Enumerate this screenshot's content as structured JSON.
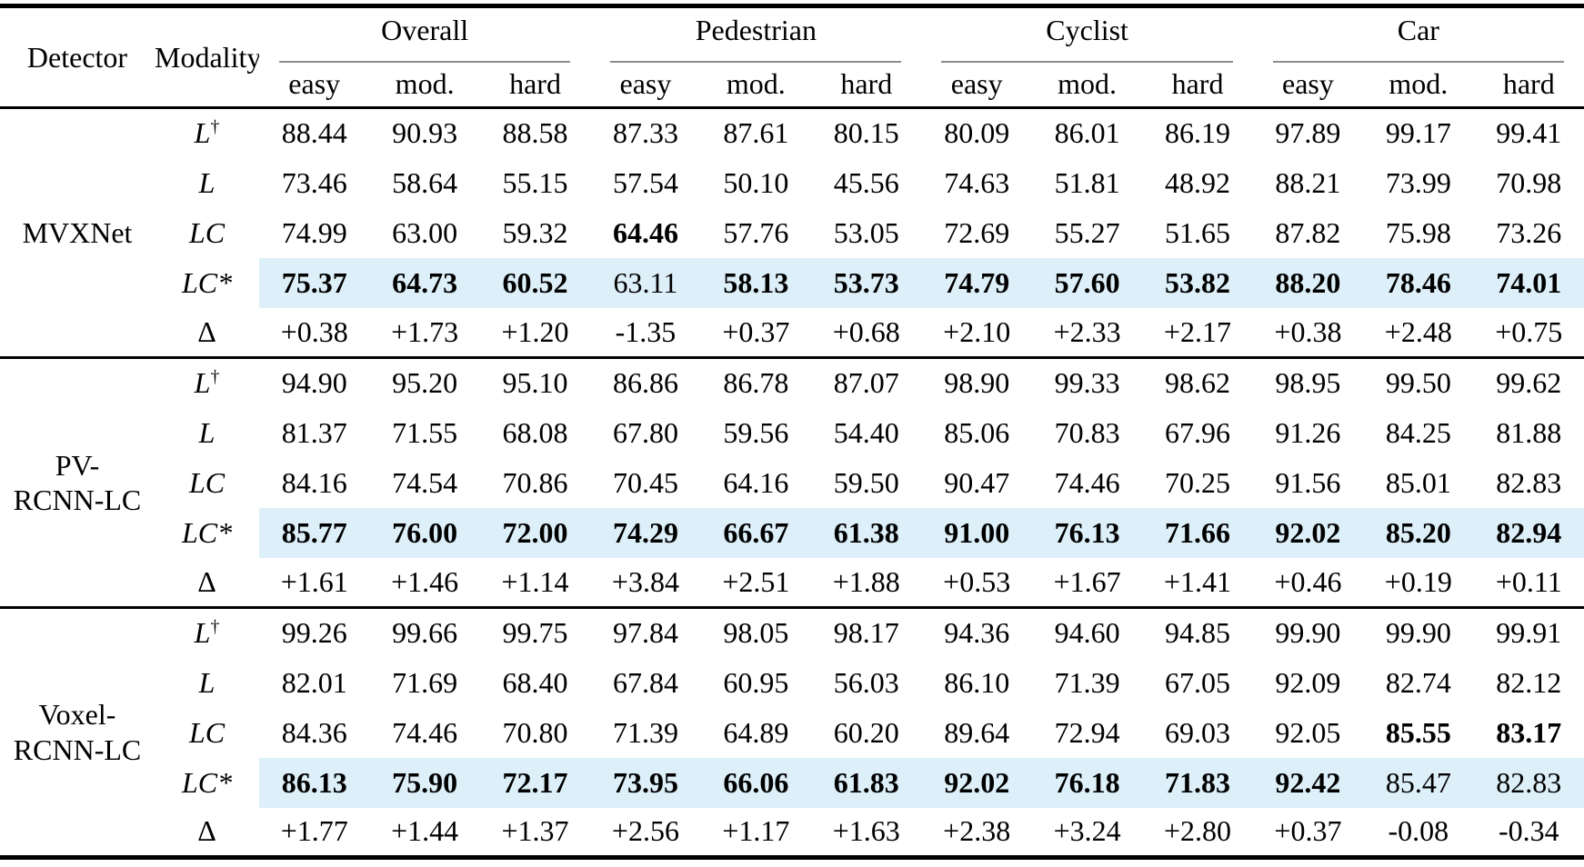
{
  "colors": {
    "highlight_bg": "#ddeff9",
    "rule_black": "#000000",
    "group_rule_gray": "#8c8c8c"
  },
  "table": {
    "headers": {
      "detector": "Detector",
      "modality": "Modality",
      "groups": [
        "Overall",
        "Pedestrian",
        "Cyclist",
        "Car"
      ],
      "sub": [
        "easy",
        "mod.",
        "hard"
      ]
    },
    "blocks": [
      {
        "detector": [
          "MVXNet"
        ],
        "rows": [
          {
            "modality": "L†",
            "highlight": false,
            "bold": [],
            "values": [
              "88.44",
              "90.93",
              "88.58",
              "87.33",
              "87.61",
              "80.15",
              "80.09",
              "86.01",
              "86.19",
              "97.89",
              "99.17",
              "99.41"
            ]
          },
          {
            "modality": "L",
            "highlight": false,
            "bold": [],
            "values": [
              "73.46",
              "58.64",
              "55.15",
              "57.54",
              "50.10",
              "45.56",
              "74.63",
              "51.81",
              "48.92",
              "88.21",
              "73.99",
              "70.98"
            ]
          },
          {
            "modality": "LC",
            "highlight": false,
            "bold": [
              3
            ],
            "values": [
              "74.99",
              "63.00",
              "59.32",
              "64.46",
              "57.76",
              "53.05",
              "72.69",
              "55.27",
              "51.65",
              "87.82",
              "75.98",
              "73.26"
            ]
          },
          {
            "modality": "LC*",
            "highlight": true,
            "bold": [
              0,
              1,
              2,
              4,
              5,
              6,
              7,
              8,
              9,
              10,
              11
            ],
            "values": [
              "75.37",
              "64.73",
              "60.52",
              "63.11",
              "58.13",
              "53.73",
              "74.79",
              "57.60",
              "53.82",
              "88.20",
              "78.46",
              "74.01"
            ]
          },
          {
            "modality": "Δ",
            "highlight": false,
            "bold": [],
            "values": [
              "+0.38",
              "+1.73",
              "+1.20",
              "-1.35",
              "+0.37",
              "+0.68",
              "+2.10",
              "+2.33",
              "+2.17",
              "+0.38",
              "+2.48",
              "+0.75"
            ]
          }
        ]
      },
      {
        "detector": [
          "PV-",
          "RCNN-LC"
        ],
        "rows": [
          {
            "modality": "L†",
            "highlight": false,
            "bold": [],
            "values": [
              "94.90",
              "95.20",
              "95.10",
              "86.86",
              "86.78",
              "87.07",
              "98.90",
              "99.33",
              "98.62",
              "98.95",
              "99.50",
              "99.62"
            ]
          },
          {
            "modality": "L",
            "highlight": false,
            "bold": [],
            "values": [
              "81.37",
              "71.55",
              "68.08",
              "67.80",
              "59.56",
              "54.40",
              "85.06",
              "70.83",
              "67.96",
              "91.26",
              "84.25",
              "81.88"
            ]
          },
          {
            "modality": "LC",
            "highlight": false,
            "bold": [],
            "values": [
              "84.16",
              "74.54",
              "70.86",
              "70.45",
              "64.16",
              "59.50",
              "90.47",
              "74.46",
              "70.25",
              "91.56",
              "85.01",
              "82.83"
            ]
          },
          {
            "modality": "LC*",
            "highlight": true,
            "bold": [
              0,
              1,
              2,
              3,
              4,
              5,
              6,
              7,
              8,
              9,
              10,
              11
            ],
            "values": [
              "85.77",
              "76.00",
              "72.00",
              "74.29",
              "66.67",
              "61.38",
              "91.00",
              "76.13",
              "71.66",
              "92.02",
              "85.20",
              "82.94"
            ]
          },
          {
            "modality": "Δ",
            "highlight": false,
            "bold": [],
            "values": [
              "+1.61",
              "+1.46",
              "+1.14",
              "+3.84",
              "+2.51",
              "+1.88",
              "+0.53",
              "+1.67",
              "+1.41",
              "+0.46",
              "+0.19",
              "+0.11"
            ]
          }
        ]
      },
      {
        "detector": [
          "Voxel-",
          "RCNN-LC"
        ],
        "rows": [
          {
            "modality": "L†",
            "highlight": false,
            "bold": [],
            "values": [
              "99.26",
              "99.66",
              "99.75",
              "97.84",
              "98.05",
              "98.17",
              "94.36",
              "94.60",
              "94.85",
              "99.90",
              "99.90",
              "99.91"
            ]
          },
          {
            "modality": "L",
            "highlight": false,
            "bold": [],
            "values": [
              "82.01",
              "71.69",
              "68.40",
              "67.84",
              "60.95",
              "56.03",
              "86.10",
              "71.39",
              "67.05",
              "92.09",
              "82.74",
              "82.12"
            ]
          },
          {
            "modality": "LC",
            "highlight": false,
            "bold": [
              10,
              11
            ],
            "values": [
              "84.36",
              "74.46",
              "70.80",
              "71.39",
              "64.89",
              "60.20",
              "89.64",
              "72.94",
              "69.03",
              "92.05",
              "85.55",
              "83.17"
            ]
          },
          {
            "modality": "LC*",
            "highlight": true,
            "bold": [
              0,
              1,
              2,
              3,
              4,
              5,
              6,
              7,
              8,
              9
            ],
            "values": [
              "86.13",
              "75.90",
              "72.17",
              "73.95",
              "66.06",
              "61.83",
              "92.02",
              "76.18",
              "71.83",
              "92.42",
              "85.47",
              "82.83"
            ]
          },
          {
            "modality": "Δ",
            "highlight": false,
            "bold": [],
            "values": [
              "+1.77",
              "+1.44",
              "+1.37",
              "+2.56",
              "+1.17",
              "+1.63",
              "+2.38",
              "+3.24",
              "+2.80",
              "+0.37",
              "-0.08",
              "-0.34"
            ]
          }
        ]
      }
    ]
  }
}
